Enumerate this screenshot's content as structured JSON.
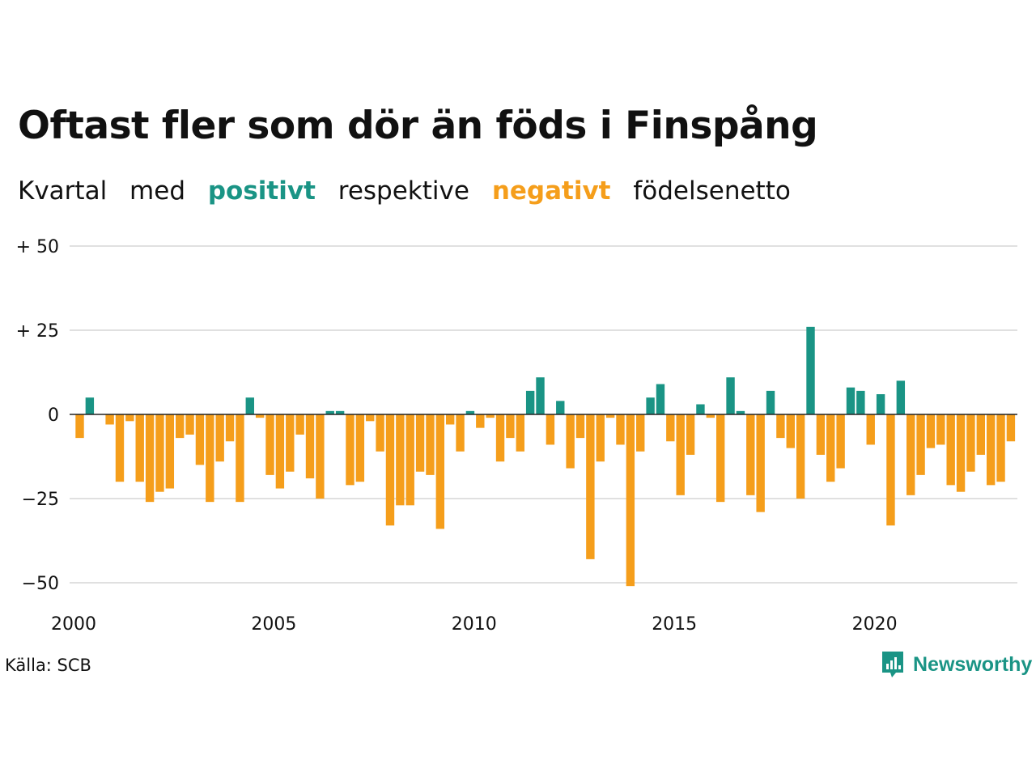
{
  "colors": {
    "positive": "#1a9485",
    "negative": "#f59e1b",
    "grid": "#e0e0e0",
    "zero": "#222222"
  },
  "title": "Oftast fler som dör än föds i Finspång",
  "subtitle": {
    "w1": "Kvartal",
    "w2": "med",
    "positive_word": "positivt",
    "w3": "respektive",
    "negative_word": "negativt",
    "w4": "födelsenetto"
  },
  "source": "Källa: SCB",
  "logo": {
    "text": "Newsworthy",
    "icon": "newsworthy-chart-icon"
  },
  "chart_data": {
    "type": "bar",
    "title": "Oftast fler som dör än föds i Finspång",
    "subtitle": "Kvartal med positivt respektive negativt födelsenetto",
    "xlabel": "",
    "ylabel": "",
    "x_start": "2000 Q1",
    "ylim": [
      -52,
      52
    ],
    "yticks": [
      50,
      25,
      0,
      -25,
      -50
    ],
    "ytick_labels": [
      "+ 50",
      "+ 25",
      "0",
      "−25",
      "−50"
    ],
    "xticks": [
      "2000",
      "2005",
      "2010",
      "2015",
      "2020"
    ],
    "grid": true,
    "legend": "none (colors explained in subtitle)",
    "values": [
      -7,
      5,
      0,
      -3,
      -20,
      -2,
      -20,
      -26,
      -23,
      -22,
      -7,
      -6,
      -15,
      -26,
      -14,
      -8,
      -26,
      5,
      -1,
      -18,
      -22,
      -17,
      -6,
      -19,
      -25,
      1,
      1,
      -21,
      -20,
      -2,
      -11,
      -33,
      -27,
      -27,
      -17,
      -18,
      -34,
      -3,
      -11,
      1,
      -4,
      -1,
      -14,
      -7,
      -11,
      7,
      11,
      -9,
      4,
      -16,
      -7,
      -43,
      -14,
      -1,
      -9,
      -51,
      -11,
      5,
      9,
      -8,
      -24,
      -12,
      3,
      -1,
      -26,
      11,
      1,
      -24,
      -29,
      7,
      -7,
      -10,
      -25,
      26,
      -12,
      -20,
      -16,
      8,
      7,
      -9,
      6,
      -33,
      10,
      -24,
      -18,
      -10,
      -9,
      -21,
      -23,
      -17,
      -12,
      -21,
      -20,
      -8
    ]
  }
}
